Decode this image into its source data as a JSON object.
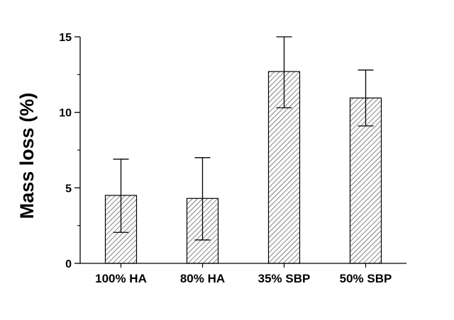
{
  "chart_data": {
    "type": "bar",
    "title": "",
    "xlabel": "",
    "ylabel": "Mass loss (%)",
    "ylim": [
      0,
      15
    ],
    "yticks": [
      0,
      5,
      10,
      15
    ],
    "grid": false,
    "legend": "none",
    "categories": [
      "100% HA",
      "80% HA",
      "35% SBP",
      "50% SBP"
    ],
    "values": [
      4.5,
      4.3,
      12.7,
      10.95
    ],
    "error_low": [
      2.05,
      1.55,
      10.3,
      9.1
    ],
    "error_high": [
      6.9,
      7.0,
      15.0,
      12.8
    ],
    "colors": {
      "bar_fill": "#ffffff",
      "hatch": "#333333",
      "outline": "#000000"
    }
  }
}
